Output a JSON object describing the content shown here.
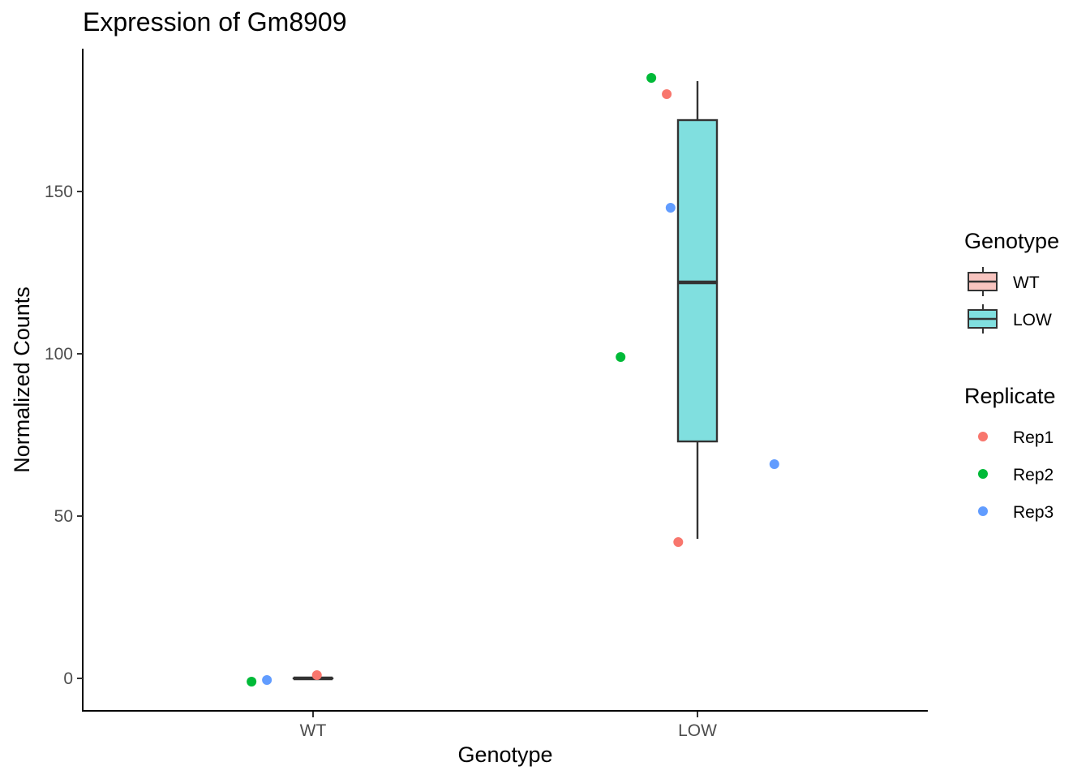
{
  "chart_data": {
    "type": "boxplot",
    "title": "Expression of Gm8909",
    "xlabel": "Genotype",
    "ylabel": "Normalized Counts",
    "categories": [
      "WT",
      "LOW"
    ],
    "ylim": [
      -10,
      194
    ],
    "yticks": [
      0,
      50,
      100,
      150
    ],
    "grid": false,
    "legend_position": "right",
    "boxes": [
      {
        "category": "WT",
        "fill": "#F8C4BF",
        "min": 0,
        "q1": 0,
        "median": 0,
        "q3": 0,
        "max": 0
      },
      {
        "category": "LOW",
        "fill": "#80DFDF",
        "min": 43,
        "q1": 73,
        "median": 122,
        "q3": 172,
        "max": 184
      }
    ],
    "points": [
      {
        "category": "WT",
        "replicate": "Rep1",
        "jitter": 0.01,
        "y": 1
      },
      {
        "category": "WT",
        "replicate": "Rep2",
        "jitter": -0.16,
        "y": -1
      },
      {
        "category": "WT",
        "replicate": "Rep3",
        "jitter": -0.12,
        "y": -0.5
      },
      {
        "category": "LOW",
        "replicate": "Rep1",
        "jitter": -0.08,
        "y": 180
      },
      {
        "category": "LOW",
        "replicate": "Rep1",
        "jitter": -0.05,
        "y": 42
      },
      {
        "category": "LOW",
        "replicate": "Rep2",
        "jitter": -0.12,
        "y": 185
      },
      {
        "category": "LOW",
        "replicate": "Rep2",
        "jitter": -0.2,
        "y": 99
      },
      {
        "category": "LOW",
        "replicate": "Rep3",
        "jitter": -0.07,
        "y": 145
      },
      {
        "category": "LOW",
        "replicate": "Rep3",
        "jitter": 0.2,
        "y": 66
      }
    ],
    "legend": {
      "genotype": {
        "title": "Genotype",
        "items": [
          {
            "label": "WT",
            "fill": "#F8C4BF"
          },
          {
            "label": "LOW",
            "fill": "#80DFDF"
          }
        ]
      },
      "replicate": {
        "title": "Replicate",
        "items": [
          {
            "label": "Rep1",
            "color": "#F8766D"
          },
          {
            "label": "Rep2",
            "color": "#00BA38"
          },
          {
            "label": "Rep3",
            "color": "#619CFF"
          }
        ]
      }
    }
  }
}
